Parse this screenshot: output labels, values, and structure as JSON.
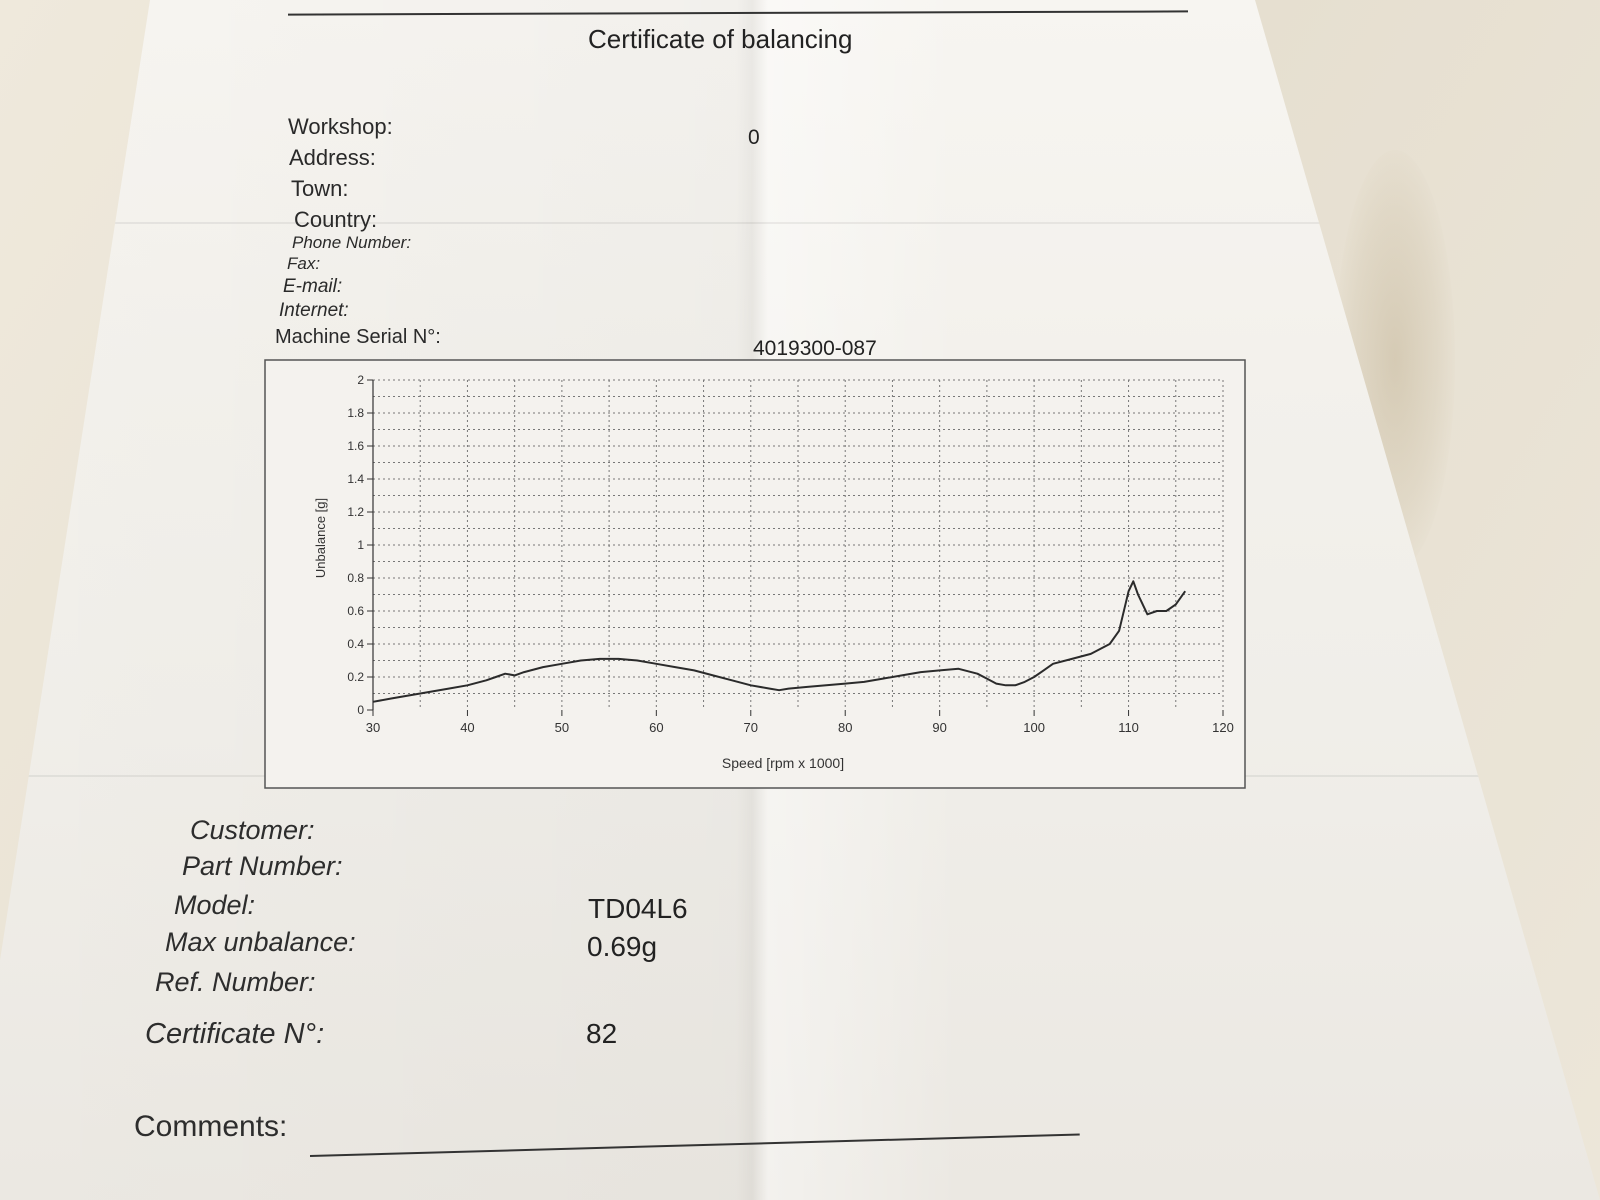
{
  "document": {
    "title": "Certificate of balancing",
    "header_fields": [
      {
        "label": "Workshop:",
        "value": "0"
      },
      {
        "label": "Address:",
        "value": ""
      },
      {
        "label": "Town:",
        "value": ""
      },
      {
        "label": "Country:",
        "value": ""
      },
      {
        "label": "Phone Number:",
        "value": ""
      },
      {
        "label": "Fax:",
        "value": ""
      },
      {
        "label": "E-mail:",
        "value": ""
      },
      {
        "label": "Internet:",
        "value": ""
      },
      {
        "label": "Machine Serial N°:",
        "value": "4019300-087"
      }
    ],
    "part_fields": [
      {
        "label": "Customer:",
        "value": ""
      },
      {
        "label": "Part Number:",
        "value": ""
      },
      {
        "label": "Model:",
        "value": "TD04L6"
      },
      {
        "label": "Max unbalance:",
        "value": "0.69g"
      },
      {
        "label": "Ref. Number:",
        "value": ""
      },
      {
        "label": "Certificate N°:",
        "value": "82"
      }
    ],
    "comments_label": "Comments:"
  },
  "chart_data": {
    "type": "line",
    "xlabel": "Speed [rpm x 1000]",
    "ylabel": "Unbalance [g]",
    "xlim": [
      30,
      120
    ],
    "ylim": [
      0,
      2
    ],
    "x_ticks": [
      30,
      40,
      50,
      60,
      70,
      80,
      90,
      100,
      110,
      120
    ],
    "y_ticks": [
      0,
      0.2,
      0.4,
      0.6,
      0.8,
      1,
      1.2,
      1.4,
      1.6,
      1.8,
      2
    ],
    "grid": true,
    "series": [
      {
        "x": [
          30,
          32,
          34,
          36,
          38,
          40,
          42,
          43,
          44,
          45,
          46,
          48,
          50,
          52,
          54,
          56,
          58,
          60,
          62,
          64,
          66,
          68,
          70,
          72,
          73,
          74,
          76,
          78,
          80,
          82,
          84,
          86,
          88,
          90,
          92,
          94,
          95,
          96,
          97,
          98,
          99,
          100,
          101,
          102,
          104,
          106,
          108,
          109,
          110,
          110.5,
          111,
          112,
          113,
          114,
          115,
          116
        ],
        "y": [
          0.05,
          0.07,
          0.09,
          0.11,
          0.13,
          0.15,
          0.18,
          0.2,
          0.22,
          0.21,
          0.23,
          0.26,
          0.28,
          0.3,
          0.31,
          0.31,
          0.3,
          0.28,
          0.26,
          0.24,
          0.21,
          0.18,
          0.15,
          0.13,
          0.12,
          0.13,
          0.14,
          0.15,
          0.16,
          0.17,
          0.19,
          0.21,
          0.23,
          0.24,
          0.25,
          0.22,
          0.19,
          0.16,
          0.15,
          0.15,
          0.17,
          0.2,
          0.24,
          0.28,
          0.31,
          0.34,
          0.4,
          0.48,
          0.72,
          0.78,
          0.7,
          0.58,
          0.6,
          0.6,
          0.64,
          0.72
        ]
      }
    ]
  }
}
